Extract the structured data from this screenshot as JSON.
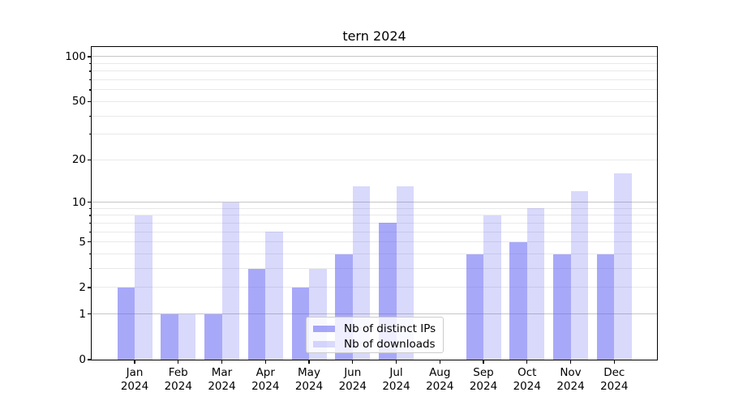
{
  "chart_data": {
    "type": "bar",
    "title": "tern 2024",
    "categories": [
      "Jan 2024",
      "Feb 2024",
      "Mar 2024",
      "Apr 2024",
      "May 2024",
      "Jun 2024",
      "Jul 2024",
      "Aug 2024",
      "Sep 2024",
      "Oct 2024",
      "Nov 2024",
      "Dec 2024"
    ],
    "series": [
      {
        "name": "Nb of distinct IPs",
        "values": [
          2,
          1,
          1,
          3,
          2,
          4,
          7,
          0,
          4,
          5,
          4,
          4
        ]
      },
      {
        "name": "Nb of downloads",
        "values": [
          8,
          1,
          10,
          6,
          3,
          13,
          13,
          0,
          8,
          9,
          12,
          16
        ]
      }
    ],
    "xlabel": "",
    "ylabel": "",
    "yscale": "log1p",
    "ylim": [
      0,
      116
    ],
    "yticks": [
      0,
      1,
      2,
      5,
      10,
      20,
      50,
      100
    ],
    "y_minor_ticks": [
      3,
      4,
      6,
      7,
      8,
      9,
      30,
      40,
      60,
      70,
      80,
      90
    ],
    "gridlines": {
      "major": [
        1,
        10,
        100
      ],
      "minor": [
        2,
        3,
        4,
        5,
        6,
        7,
        8,
        9,
        20,
        30,
        40,
        50,
        60,
        70,
        80,
        90
      ]
    },
    "grid": "both",
    "legend_position": "lower center",
    "colors": {
      "bar_ips": "rgba(95,95,243,0.54)",
      "bar_downloads": "rgba(95,95,243,0.235)",
      "grid_major": "#c6c6c6",
      "grid_minor": "#e9e9e9",
      "axis": "#000000",
      "legend_border": "#cccccc",
      "legend_bg": "rgba(255,255,255,0.8)"
    }
  }
}
